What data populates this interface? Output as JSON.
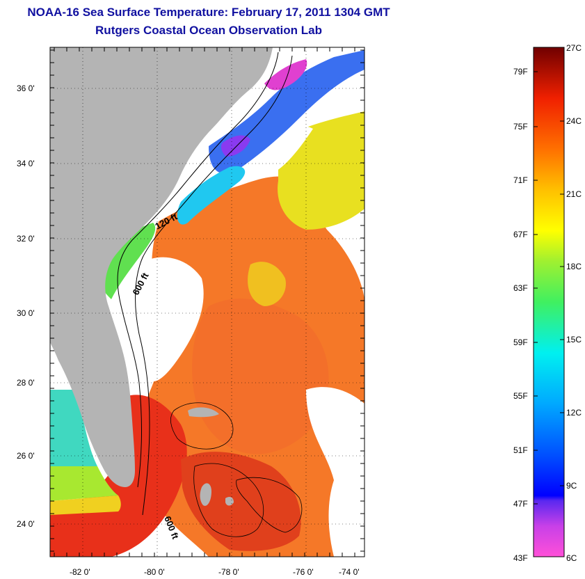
{
  "header": {
    "title": "NOAA-16 Sea Surface Temperature:  February 17, 2011 1304 GMT",
    "subtitle": "Rutgers Coastal Ocean Observation Lab"
  },
  "map": {
    "lat_ticks": [
      "36 0'",
      "34 0'",
      "32 0'",
      "30 0'",
      "28 0'",
      "26 0'",
      "24 0'"
    ],
    "lon_ticks": [
      "-82 0'",
      "-80 0'",
      "-78 0'",
      "-76 0'",
      "-74 0'"
    ],
    "isobaths": [
      "120 ft",
      "600 ft",
      "600 ft"
    ]
  },
  "colorbar": {
    "fahrenheit": [
      "79F",
      "75F",
      "71F",
      "67F",
      "63F",
      "59F",
      "55F",
      "51F",
      "47F",
      "43F"
    ],
    "celsius": [
      "27C",
      "24C",
      "21C",
      "18C",
      "15C",
      "12C",
      "9C",
      "6C"
    ]
  },
  "colors": {
    "title": "#1010a0",
    "land": "#b4b4b4",
    "sst_warm": "#f06a1a",
    "sst_hot": "#e83018"
  }
}
